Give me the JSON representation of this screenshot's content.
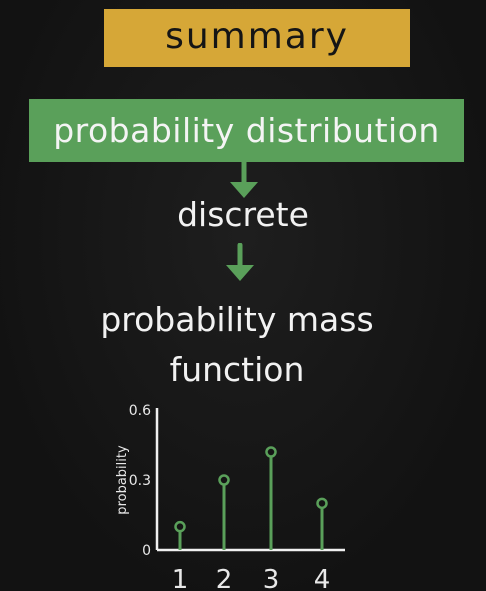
{
  "header": {
    "title": "summary"
  },
  "flow": {
    "box_label": "probability distribution",
    "step1": "discrete",
    "step2_line1": "probability mass",
    "step2_line2": "function"
  },
  "colors": {
    "summary_box": "#d6a737",
    "green": "#5aa05a",
    "background": "#151515"
  },
  "chart_data": {
    "type": "scatter",
    "style": "stem",
    "x": [
      1,
      2,
      3,
      4
    ],
    "values": [
      0.1,
      0.3,
      0.42,
      0.2
    ],
    "categories": [
      "1",
      "2",
      "3",
      "4"
    ],
    "ylabel": "probability",
    "xlabel": "",
    "title": "",
    "ylim": [
      0,
      0.6
    ],
    "yticks": [
      "0",
      "0.3",
      "0.6"
    ],
    "grid": false
  }
}
